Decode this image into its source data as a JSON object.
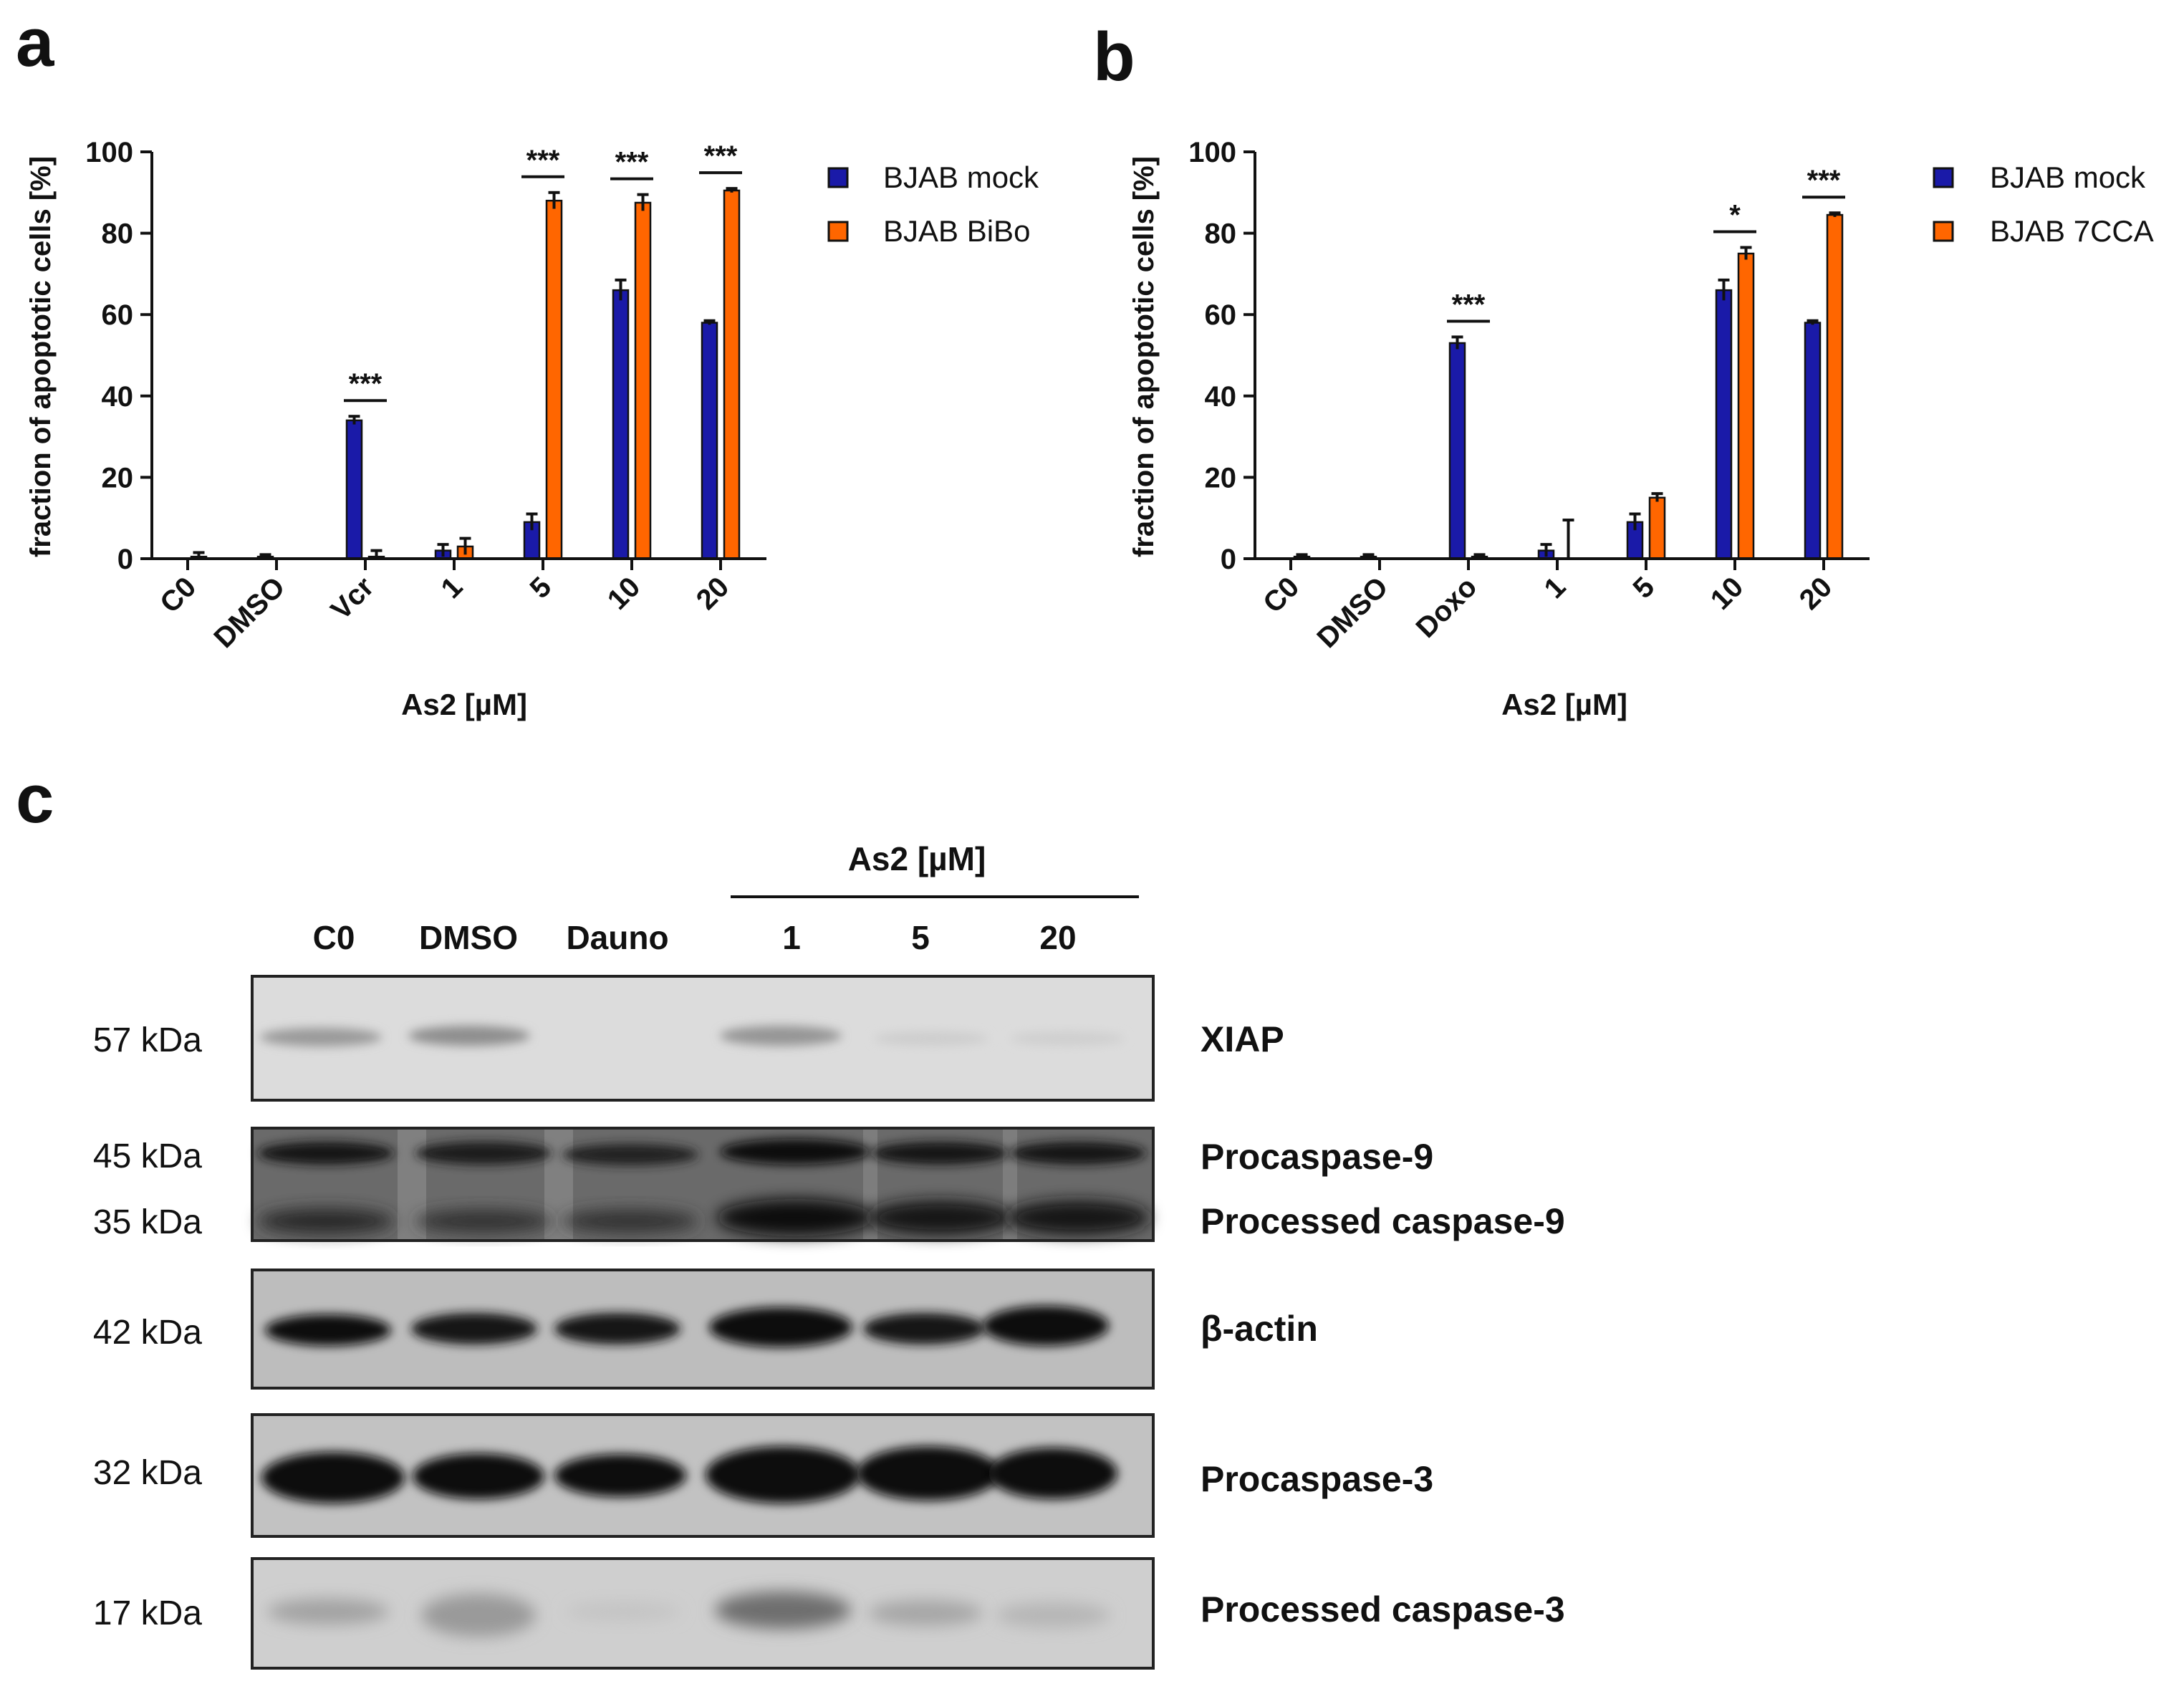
{
  "panels": {
    "a": "a",
    "b": "b",
    "c": "c"
  },
  "colors": {
    "mock": "#1a1aa8",
    "bibo": "#ff6600",
    "cca": "#ff6600",
    "axis": "#111111"
  },
  "chart_data": [
    {
      "panel": "a",
      "type": "bar",
      "categories": [
        "C0",
        "DMSO",
        "Vcr",
        "1",
        "5",
        "10",
        "20"
      ],
      "xlabel": "As2 [µM]",
      "ylabel": "fraction of apoptotic cells [%]",
      "ylim": [
        0,
        100
      ],
      "yticks": [
        0,
        20,
        40,
        60,
        80,
        100
      ],
      "legend_position": "top-right",
      "series": [
        {
          "name": "BJAB mock",
          "values": [
            0,
            0.5,
            34,
            2,
            9,
            66,
            58
          ],
          "errors": [
            0,
            0.5,
            1,
            1.5,
            2,
            2.5,
            0.5
          ]
        },
        {
          "name": "BJAB BiBo",
          "values": [
            0.5,
            0,
            0.5,
            3,
            88,
            87.5,
            90.5
          ],
          "errors": [
            1,
            0,
            1.5,
            2,
            2,
            2,
            0.5
          ]
        }
      ],
      "significance": [
        {
          "category": "Vcr",
          "label": "***"
        },
        {
          "category": "5",
          "label": "***"
        },
        {
          "category": "10",
          "label": "***"
        },
        {
          "category": "20",
          "label": "***"
        }
      ]
    },
    {
      "panel": "b",
      "type": "bar",
      "categories": [
        "C0",
        "DMSO",
        "Doxo",
        "1",
        "5",
        "10",
        "20"
      ],
      "xlabel": "As2 [µM]",
      "ylabel": "fraction of apoptotic cells [%]",
      "ylim": [
        0,
        100
      ],
      "yticks": [
        0,
        20,
        40,
        60,
        80,
        100
      ],
      "legend_position": "top-right",
      "series": [
        {
          "name": "BJAB mock",
          "values": [
            0,
            0.5,
            53,
            2,
            9,
            66,
            58
          ],
          "errors": [
            0,
            0.5,
            1.5,
            1.5,
            2,
            2.5,
            0.5
          ]
        },
        {
          "name": "BJAB 7CCA",
          "values": [
            0.5,
            0,
            0.5,
            0,
            15,
            75,
            84.5
          ],
          "errors": [
            0.5,
            0,
            0.5,
            9.5,
            1,
            1.5,
            0.5
          ]
        }
      ],
      "significance": [
        {
          "category": "Doxo",
          "label": "***"
        },
        {
          "category": "10",
          "label": "*"
        },
        {
          "category": "20",
          "label": "***"
        }
      ]
    }
  ],
  "blot": {
    "treatment_header": "As2 [µM]",
    "lanes": [
      "C0",
      "DMSO",
      "Dauno",
      "1",
      "5",
      "20"
    ],
    "rows": [
      {
        "sizes": [
          "57 kDa"
        ],
        "labels": [
          "XIAP"
        ]
      },
      {
        "sizes": [
          "45 kDa",
          "35 kDa"
        ],
        "labels": [
          "Procaspase-9",
          "Processed caspase-9"
        ]
      },
      {
        "sizes": [
          "42 kDa"
        ],
        "labels": [
          "β-actin"
        ]
      },
      {
        "sizes": [
          "32 kDa"
        ],
        "labels": [
          "Procaspase-3"
        ]
      },
      {
        "sizes": [
          "17 kDa"
        ],
        "labels": [
          "Processed caspase-3"
        ]
      }
    ]
  }
}
